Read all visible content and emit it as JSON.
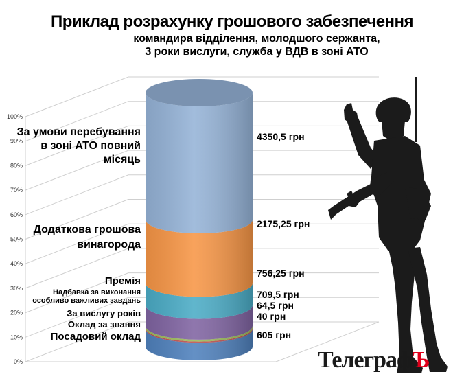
{
  "title": {
    "line1": "Приклад розрахунку грошового забезпечення",
    "line2": "командира відділення, молодшого сержанта,",
    "line3": "3 роки вислуги, служба у ВДВ в зоні АТО"
  },
  "logo": {
    "text": "Телеграф",
    "hard_sign": "Ъ"
  },
  "chart_data": {
    "type": "stacked-bar-3d",
    "title": "Приклад розрахунку грошового забезпечення командира відділення, молодшого сержанта, 3 роки вислуги, служба у ВДВ в зоні АТО",
    "ylim": [
      0,
      100
    ],
    "yticks": [
      "0%",
      "10%",
      "20%",
      "30%",
      "40%",
      "50%",
      "60%",
      "70%",
      "80%",
      "90%",
      "100%"
    ],
    "grid": true,
    "series": [
      {
        "name": "Посадовий оклад",
        "value_label": "605 грн",
        "value": 605,
        "color": "#4f81bd"
      },
      {
        "name": "Оклад за звання",
        "value_label": "40 грн",
        "value": 40,
        "color": "#c0504d"
      },
      {
        "name": "За вислугу років",
        "value_label": "64,5 грн",
        "value": 64.5,
        "color": "#9bbb59"
      },
      {
        "name": "Надбавка за виконання особливо важливих завдань",
        "value_label": "709,5 грн",
        "value": 709.5,
        "color": "#8064a2"
      },
      {
        "name": "Премія",
        "value_label": "756,25 грн",
        "value": 756.25,
        "color": "#4bacc6"
      },
      {
        "name": "Додаткова грошова винагорода",
        "value_label": "2175,25 грн",
        "value": 2175.25,
        "color": "#f79646"
      },
      {
        "name": "За умови перебування в зоні АТО повний місяць",
        "value_label": "4350,5 грн",
        "value": 4350.5,
        "color": "#95b3d7"
      }
    ],
    "category_labels": [
      [
        "Посадовий оклад"
      ],
      [
        "Оклад за звання"
      ],
      [
        "За вислугу років"
      ],
      [
        "Надбавка за виконання",
        "особливо важливих завдань"
      ],
      [
        "Премія"
      ],
      [
        "Додаткова грошова",
        "винагорода"
      ],
      [
        "За умови перебування",
        "в зоні АТО повний",
        "місяць"
      ]
    ]
  }
}
